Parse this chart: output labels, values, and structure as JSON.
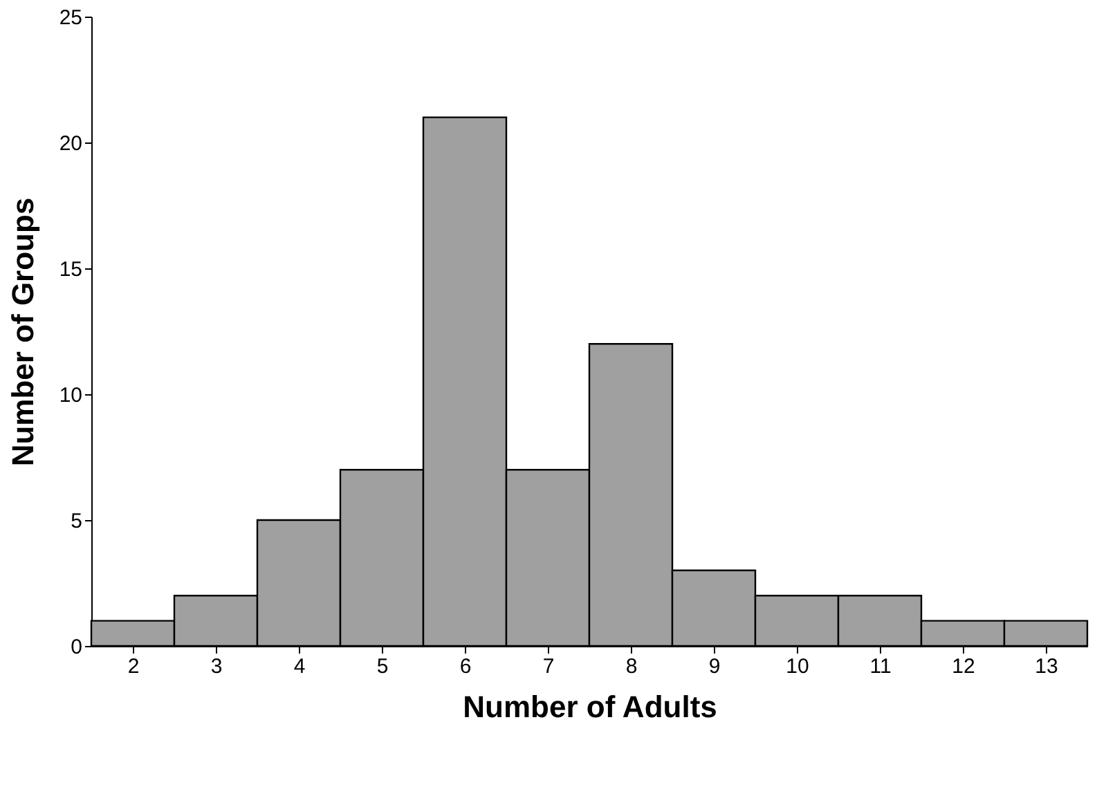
{
  "chart_data": {
    "type": "histogram",
    "xlabel": "Number of Adults",
    "ylabel": "Number of Groups",
    "bins": [
      1.5,
      2.5,
      3.5,
      4.5,
      5.5,
      6.5,
      7.5,
      8.5,
      9.5,
      10.5,
      11.5,
      12.5,
      13.5
    ],
    "values": [
      1,
      2,
      5,
      7,
      21,
      7,
      12,
      3,
      2,
      2,
      1,
      1
    ],
    "color": "#a0a0a0",
    "xlim": [
      1.5,
      13.5
    ],
    "xticks": [
      2,
      3,
      4,
      5,
      6,
      7,
      8,
      9,
      10,
      11,
      12,
      13
    ],
    "ylim": [
      0,
      25
    ],
    "yticks": [
      0,
      5,
      10,
      15,
      20,
      25
    ],
    "grid": false
  }
}
